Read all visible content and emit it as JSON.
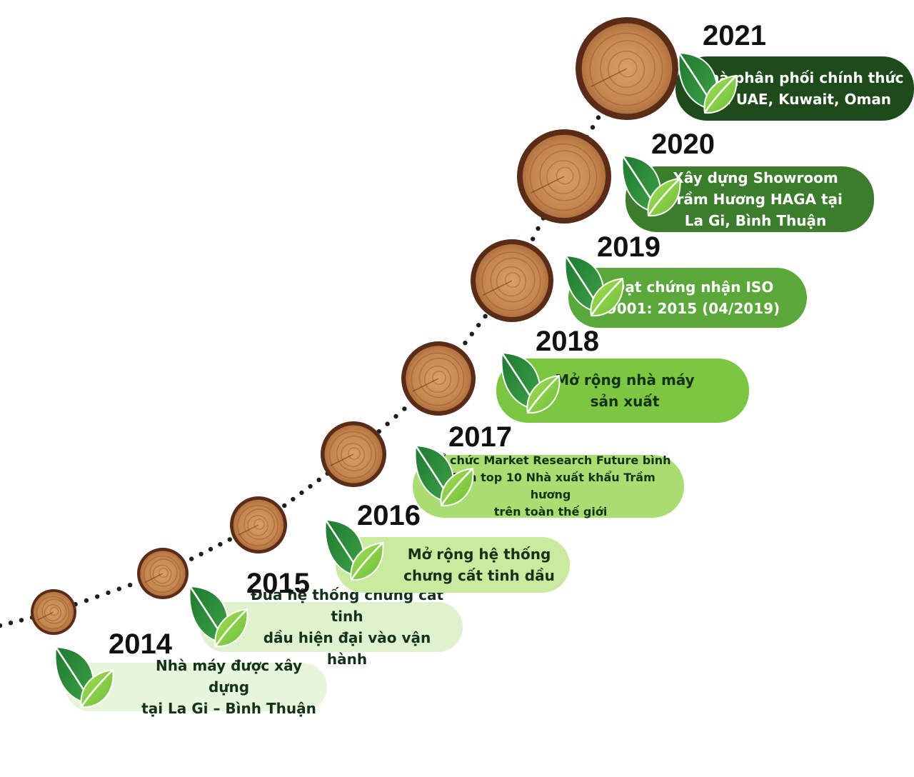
{
  "colors": {
    "background": "#ffffff",
    "path_dots": "#1e1e1e",
    "bark": "#5a2c17",
    "wood": "#c98a55",
    "leaf_dark": "#2e8b3a",
    "leaf_light": "#8fd14a",
    "year_text": "#111111"
  },
  "milestones": [
    {
      "year": "2014",
      "text": "Nhà máy được xây dựng\ntại La Gi – Bình Thuận",
      "pill_color": "#e8f5dd",
      "text_color": "#14311a",
      "icon": "leaf-icon"
    },
    {
      "year": "2015",
      "text": "Đưa hệ thống chưng cất tinh\ndầu hiện đại vào vận hành",
      "pill_color": "#dff1cf",
      "text_color": "#14311a",
      "icon": "leaf-icon"
    },
    {
      "year": "2016",
      "text": "Mở rộng hệ thống\nchưng cất tinh dầu",
      "pill_color": "#c9ea9f",
      "text_color": "#14311a",
      "icon": "leaf-icon"
    },
    {
      "year": "2017",
      "text": "Tổ chức Market Research Future bình\nchọn top 10 Nhà xuất khẩu Trầm hương\ntrên toàn thế giới",
      "pill_color": "#a9dd72",
      "text_color": "#14311a",
      "icon": "leaf-icon"
    },
    {
      "year": "2018",
      "text": "Mở rộng nhà máy\nsản xuất",
      "pill_color": "#7cc642",
      "text_color": "#14311a",
      "icon": "leaf-icon"
    },
    {
      "year": "2019",
      "text": "Đạt chứng nhận ISO\n9001: 2015 (04/2019)",
      "pill_color": "#5aa83a",
      "text_color": "#ffffff",
      "icon": "leaf-icon"
    },
    {
      "year": "2020",
      "text": "Xây dựng Showroom\nTrầm Hương HAGA tại\nLa Gi, Bình Thuận",
      "pill_color": "#3b7d2c",
      "text_color": "#ffffff",
      "icon": "leaf-icon"
    },
    {
      "year": "2021",
      "text": "Nhà phân phối chính thức\ntại UAE, Kuwait, Oman",
      "pill_color": "#1f4a1c",
      "text_color": "#ffffff",
      "icon": "leaf-icon"
    }
  ]
}
